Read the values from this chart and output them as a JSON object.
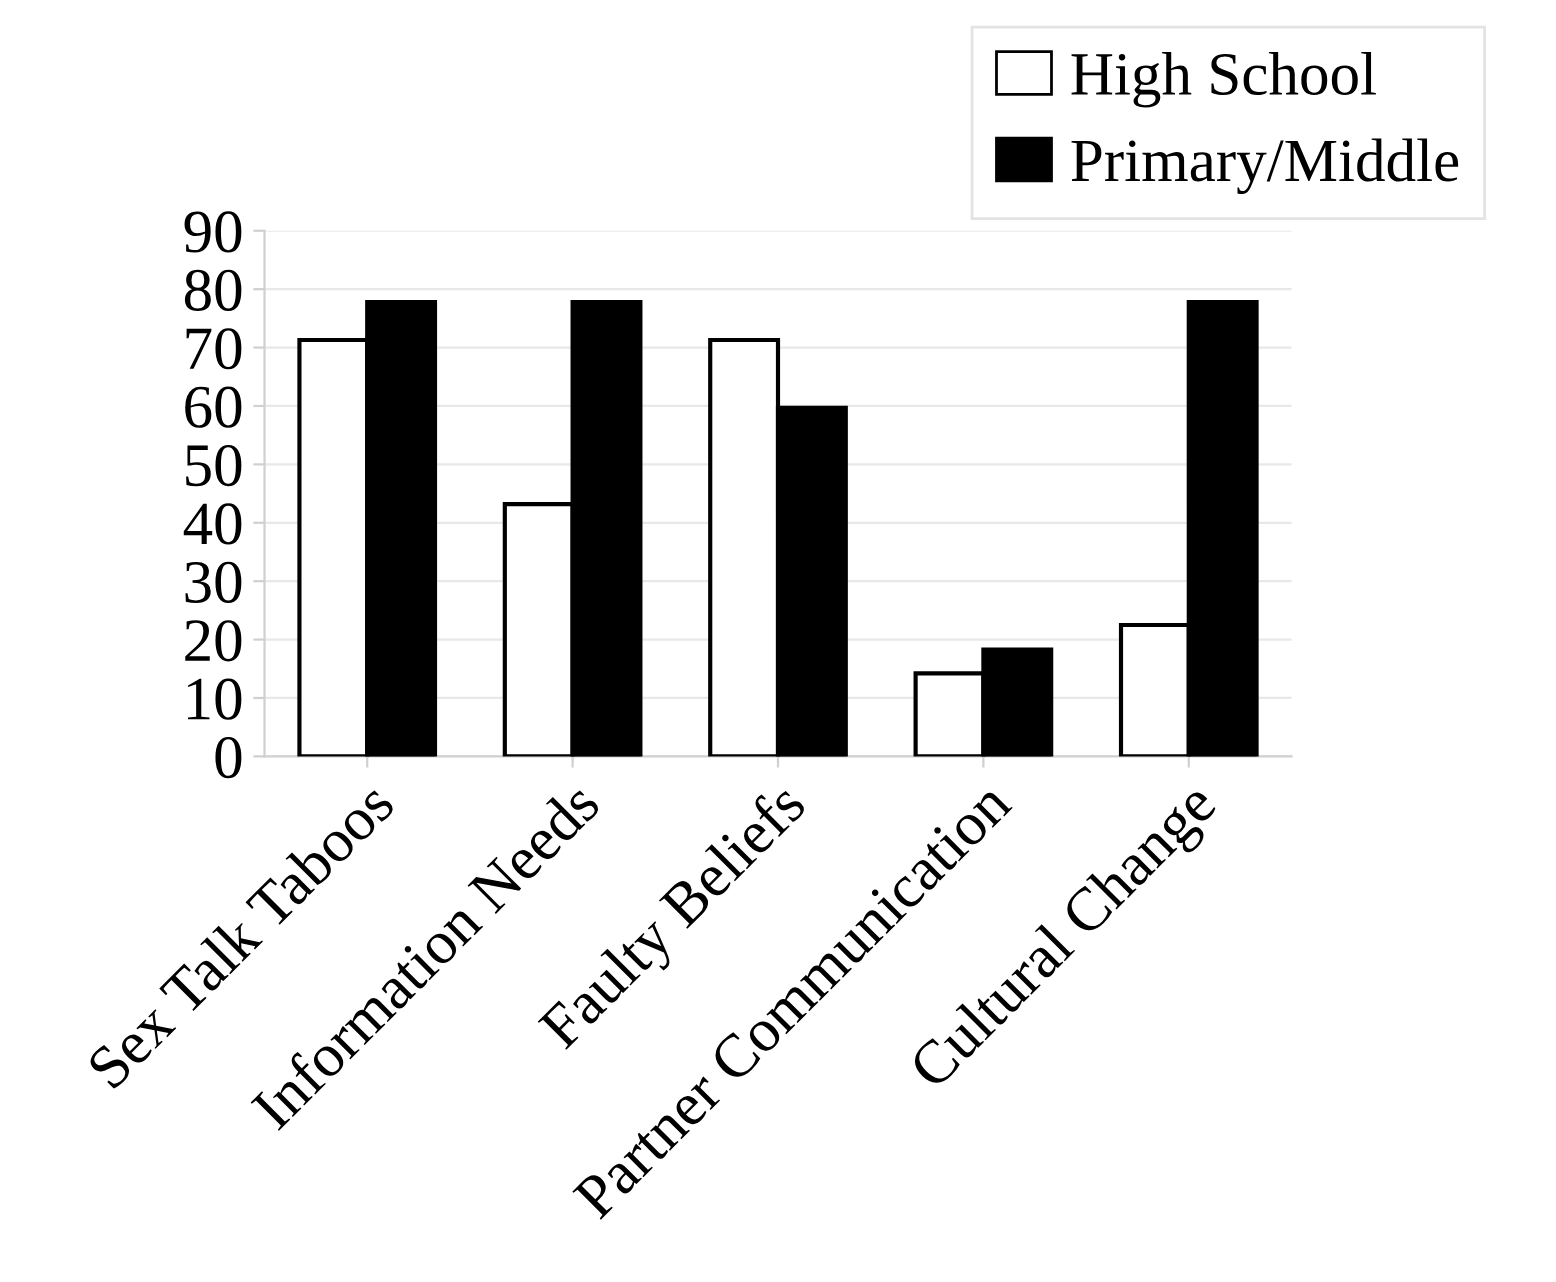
{
  "chart_data": {
    "type": "bar",
    "categories": [
      "Sex Talk Taboos",
      "Information Needs",
      "Faulty Beliefs",
      "Partner Communication",
      "Cultural Change"
    ],
    "series": [
      {
        "name": "High School",
        "color": "#ffffff",
        "values": [
          71.3,
          43.2,
          71.3,
          14.2,
          22.5
        ]
      },
      {
        "name": "Primary/Middle",
        "color": "#000000",
        "values": [
          77.8,
          77.8,
          59.7,
          18.3,
          77.8
        ]
      }
    ],
    "ylim": [
      0,
      90
    ],
    "yticks": [
      0,
      10,
      20,
      30,
      40,
      50,
      60,
      70,
      80,
      90
    ],
    "grid": "y",
    "legend": "top right"
  }
}
